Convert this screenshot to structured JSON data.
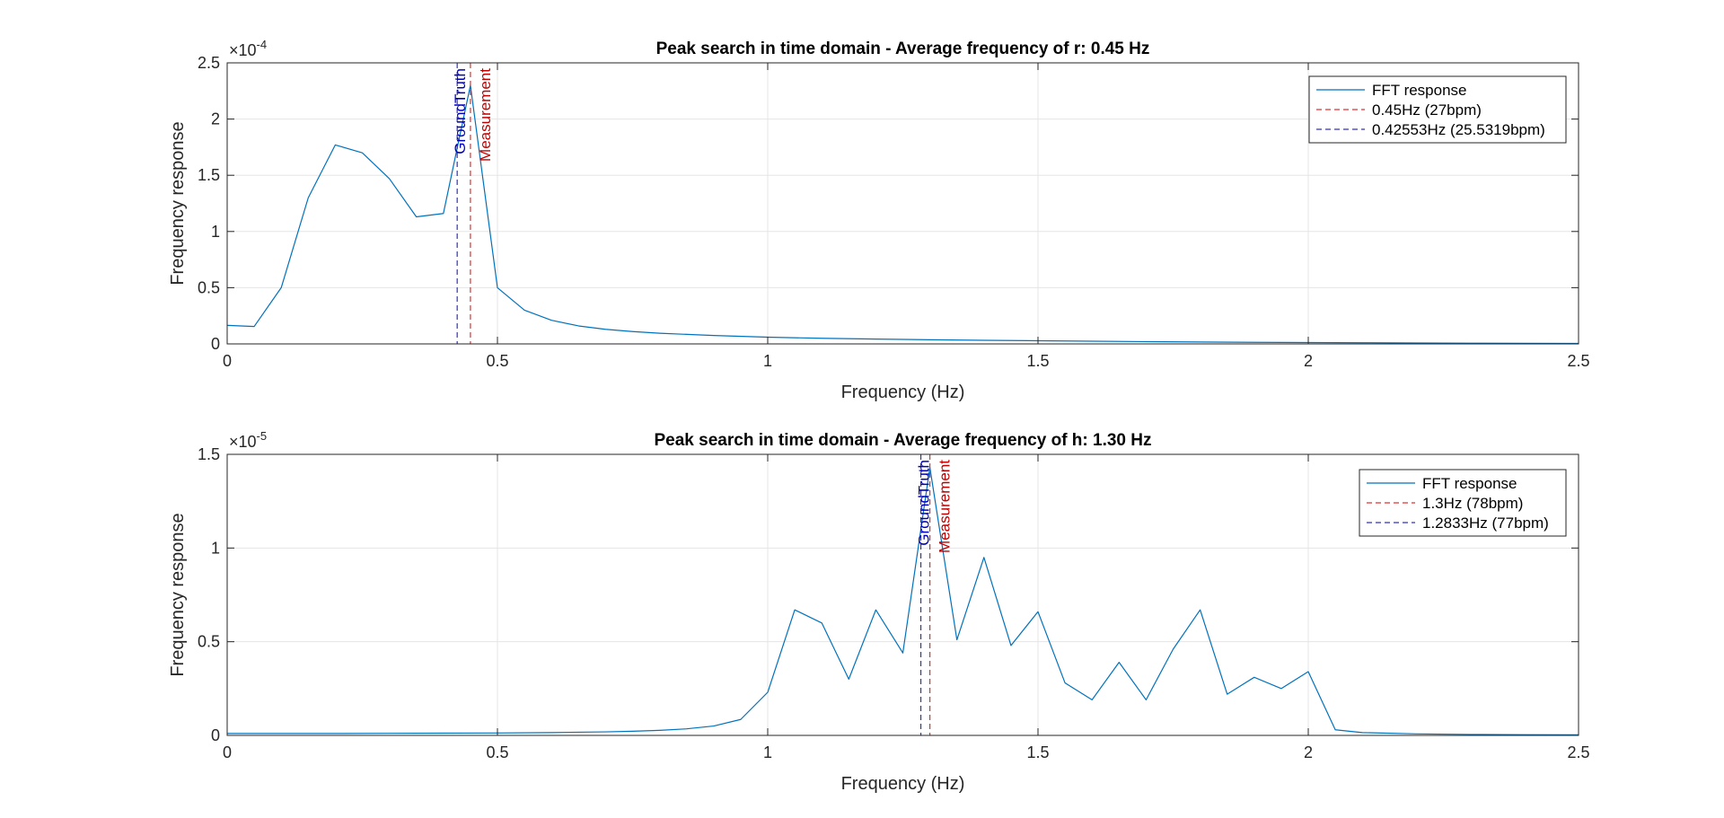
{
  "figure": {
    "background": "#ffffff"
  },
  "colors": {
    "fft": "#0072BD",
    "measurement": "#E03030",
    "groundtruth": "#3030C0",
    "measurement_label": "#C00000",
    "groundtruth_label": "#0000C0",
    "grid": "#e5e5e5",
    "axis": "#262626"
  },
  "chart_data": [
    {
      "type": "line",
      "title": "Peak search in time domain - Average frequency of r: 0.45 Hz",
      "xlabel": "Frequency (Hz)",
      "ylabel": "Frequency response",
      "xlim": [
        0,
        2.5
      ],
      "ylim": [
        0,
        2.5
      ],
      "exponent_label": "×10",
      "exponent_power": "-4",
      "xticks": [
        0,
        0.5,
        1,
        1.5,
        2,
        2.5
      ],
      "xtick_labels": [
        "0",
        "0.5",
        "1",
        "1.5",
        "2",
        "2.5"
      ],
      "yticks": [
        0,
        0.5,
        1,
        1.5,
        2,
        2.5
      ],
      "ytick_labels": [
        "0",
        "0.5",
        "1",
        "1.5",
        "2",
        "2.5"
      ],
      "grid": true,
      "legend_position": "top-right",
      "series": [
        {
          "name": "FFT response",
          "style": "solid",
          "x": [
            0,
            0.05,
            0.1,
            0.15,
            0.2,
            0.25,
            0.3,
            0.35,
            0.4,
            0.45,
            0.5,
            0.55,
            0.6,
            0.65,
            0.7,
            0.75,
            0.8,
            0.9,
            1.0,
            1.1,
            1.2,
            1.3,
            1.4,
            1.5,
            1.6,
            1.7,
            1.8,
            1.9,
            2.0,
            2.1,
            2.2,
            2.3,
            2.4,
            2.5
          ],
          "y": [
            0.165,
            0.155,
            0.5,
            1.3,
            1.77,
            1.7,
            1.47,
            1.13,
            1.16,
            2.3,
            0.5,
            0.3,
            0.21,
            0.16,
            0.13,
            0.11,
            0.095,
            0.075,
            0.06,
            0.05,
            0.043,
            0.037,
            0.032,
            0.028,
            0.024,
            0.02,
            0.017,
            0.014,
            0.012,
            0.01,
            0.008,
            0.006,
            0.005,
            0.004
          ]
        }
      ],
      "vlines": [
        {
          "name": "0.45Hz (27bpm)",
          "x": 0.45,
          "role": "measurement",
          "label": "Measurement"
        },
        {
          "name": "0.42553Hz (25.5319bpm)",
          "x": 0.42553,
          "role": "groundtruth",
          "label": "GroundTruth"
        }
      ]
    },
    {
      "type": "line",
      "title": "Peak search in time domain - Average frequency of h: 1.30 Hz",
      "xlabel": "Frequency (Hz)",
      "ylabel": "Frequency response",
      "xlim": [
        0,
        2.5
      ],
      "ylim": [
        0,
        1.5
      ],
      "exponent_label": "×10",
      "exponent_power": "-5",
      "xticks": [
        0,
        0.5,
        1,
        1.5,
        2,
        2.5
      ],
      "xtick_labels": [
        "0",
        "0.5",
        "1",
        "1.5",
        "2",
        "2.5"
      ],
      "yticks": [
        0,
        0.5,
        1,
        1.5
      ],
      "ytick_labels": [
        "0",
        "0.5",
        "1",
        "1.5"
      ],
      "grid": true,
      "legend_position": "top-right",
      "series": [
        {
          "name": "FFT response",
          "style": "solid",
          "x": [
            0,
            0.1,
            0.2,
            0.3,
            0.4,
            0.5,
            0.6,
            0.7,
            0.75,
            0.8,
            0.85,
            0.9,
            0.95,
            1.0,
            1.05,
            1.1,
            1.15,
            1.2,
            1.25,
            1.3,
            1.35,
            1.4,
            1.45,
            1.5,
            1.55,
            1.6,
            1.65,
            1.7,
            1.75,
            1.8,
            1.85,
            1.9,
            1.95,
            2.0,
            2.05,
            2.1,
            2.2,
            2.3,
            2.4,
            2.5
          ],
          "y": [
            0.01,
            0.01,
            0.01,
            0.011,
            0.012,
            0.013,
            0.015,
            0.019,
            0.022,
            0.027,
            0.035,
            0.05,
            0.085,
            0.23,
            0.67,
            0.6,
            0.3,
            0.67,
            0.44,
            1.43,
            0.51,
            0.95,
            0.48,
            0.66,
            0.28,
            0.19,
            0.39,
            0.19,
            0.46,
            0.67,
            0.22,
            0.31,
            0.25,
            0.34,
            0.03,
            0.015,
            0.008,
            0.005,
            0.004,
            0.003
          ]
        }
      ],
      "vlines": [
        {
          "name": "1.3Hz (78bpm)",
          "x": 1.3,
          "role": "measurement",
          "label": "Measurement"
        },
        {
          "name": "1.2833Hz (77bpm)",
          "x": 1.2833,
          "role": "groundtruth",
          "label": "GroundTruth"
        }
      ]
    }
  ]
}
